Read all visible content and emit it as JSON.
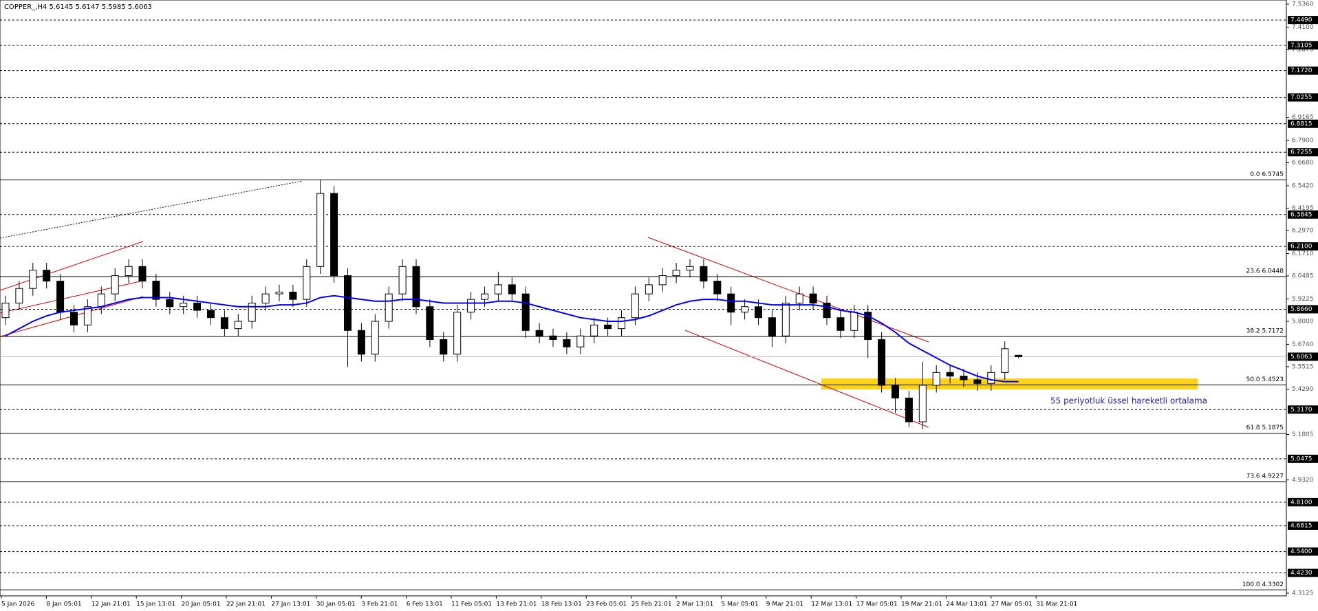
{
  "chart_data": {
    "type": "candlestick",
    "title": "COPPER_,H4  5.6145 5.6147 5.5985 5.6063",
    "annotation": "55 periyotluk üssel hareketli ortalama",
    "x_labels": [
      "5 Jan 2026",
      "8 Jan 05:01",
      "12 Jan 21:01",
      "15 Jan 13:01",
      "20 Jan 05:01",
      "22 Jan 21:01",
      "27 Jan 13:01",
      "30 Jan 05:01",
      "3 Feb 21:01",
      "6 Feb 13:01",
      "11 Feb 05:01",
      "13 Feb 21:01",
      "18 Feb 13:01",
      "23 Feb 05:01",
      "25 Feb 21:01",
      "2 Mar 13:01",
      "5 Mar 05:01",
      "9 Mar 21:01",
      "12 Mar 13:01",
      "17 Mar 05:01",
      "19 Mar 21:01",
      "24 Mar 13:01",
      "27 Mar 05:01",
      "31 Mar 21:01"
    ],
    "open": [
      5.82,
      5.9,
      5.98,
      6.08,
      6.02,
      5.85,
      5.78,
      5.88,
      5.95,
      6.05,
      6.1,
      6.02,
      5.92,
      5.88,
      5.9,
      5.86,
      5.82,
      5.76,
      5.8,
      5.9,
      5.95,
      5.96,
      5.92,
      6.1,
      6.5,
      6.05,
      5.75,
      5.62,
      5.8,
      5.95,
      6.1,
      5.88,
      5.7,
      5.62,
      5.85,
      5.92,
      5.95,
      6.0,
      5.95,
      5.75,
      5.72,
      5.7,
      5.66,
      5.72,
      5.78,
      5.76,
      5.82,
      5.95,
      6.0,
      6.05,
      6.08,
      6.1,
      6.02,
      5.95,
      5.85,
      5.88,
      5.82,
      5.72,
      5.9,
      5.95,
      5.9,
      5.82,
      5.75,
      5.85,
      5.7,
      5.45,
      5.38,
      5.25,
      5.45,
      5.52,
      5.5,
      5.48,
      5.46,
      5.52,
      5.6145
    ],
    "high": [
      5.94,
      6.02,
      6.12,
      6.12,
      6.06,
      5.89,
      5.92,
      5.99,
      6.09,
      6.14,
      6.14,
      6.06,
      5.96,
      5.94,
      5.94,
      5.9,
      5.86,
      5.84,
      5.94,
      5.99,
      6.0,
      6.0,
      6.14,
      6.5745,
      6.54,
      6.09,
      5.79,
      5.84,
      5.99,
      6.14,
      6.14,
      5.92,
      5.74,
      5.89,
      5.96,
      5.99,
      6.07,
      6.04,
      5.99,
      5.79,
      5.76,
      5.74,
      5.76,
      5.82,
      5.82,
      5.86,
      5.99,
      6.04,
      6.09,
      6.12,
      6.14,
      6.14,
      6.06,
      5.99,
      5.92,
      5.92,
      5.86,
      5.94,
      5.99,
      5.99,
      5.94,
      5.86,
      5.89,
      5.89,
      5.74,
      5.49,
      5.42,
      5.58,
      5.56,
      5.56,
      5.54,
      5.52,
      5.56,
      5.69,
      5.6147
    ],
    "low": [
      5.78,
      5.86,
      5.94,
      5.98,
      5.81,
      5.74,
      5.74,
      5.84,
      5.91,
      6.01,
      5.98,
      5.88,
      5.84,
      5.84,
      5.82,
      5.78,
      5.72,
      5.72,
      5.76,
      5.86,
      5.91,
      5.88,
      5.88,
      6.06,
      6.01,
      5.55,
      5.58,
      5.58,
      5.76,
      5.91,
      5.84,
      5.66,
      5.58,
      5.58,
      5.81,
      5.88,
      5.91,
      5.91,
      5.71,
      5.68,
      5.66,
      5.62,
      5.62,
      5.68,
      5.72,
      5.72,
      5.78,
      5.91,
      5.96,
      6.01,
      6.04,
      5.98,
      5.91,
      5.78,
      5.81,
      5.78,
      5.66,
      5.68,
      5.86,
      5.86,
      5.78,
      5.71,
      5.71,
      5.6,
      5.41,
      5.3,
      5.22,
      5.21,
      5.41,
      5.46,
      5.44,
      5.42,
      5.42,
      5.48,
      5.5985
    ],
    "close": [
      5.9,
      5.98,
      6.08,
      6.02,
      5.85,
      5.78,
      5.88,
      5.95,
      6.05,
      6.1,
      6.02,
      5.92,
      5.88,
      5.9,
      5.86,
      5.82,
      5.76,
      5.8,
      5.9,
      5.95,
      5.96,
      5.92,
      6.1,
      6.5,
      6.05,
      5.75,
      5.62,
      5.8,
      5.95,
      6.1,
      5.88,
      5.7,
      5.62,
      5.85,
      5.92,
      5.95,
      6.0,
      5.95,
      5.75,
      5.72,
      5.7,
      5.66,
      5.72,
      5.78,
      5.76,
      5.82,
      5.95,
      6.0,
      6.05,
      6.08,
      6.1,
      6.02,
      5.95,
      5.85,
      5.88,
      5.82,
      5.72,
      5.9,
      5.95,
      5.9,
      5.82,
      5.75,
      5.85,
      5.7,
      5.45,
      5.38,
      5.25,
      5.45,
      5.52,
      5.5,
      5.48,
      5.46,
      5.52,
      5.65,
      5.6063
    ],
    "ema": {
      "color": "#0000ff",
      "values": [
        5.72,
        5.76,
        5.8,
        5.83,
        5.85,
        5.86,
        5.87,
        5.88,
        5.9,
        5.92,
        5.93,
        5.93,
        5.93,
        5.92,
        5.91,
        5.9,
        5.89,
        5.88,
        5.88,
        5.88,
        5.89,
        5.89,
        5.9,
        5.93,
        5.94,
        5.93,
        5.92,
        5.91,
        5.91,
        5.92,
        5.92,
        5.91,
        5.9,
        5.9,
        5.9,
        5.9,
        5.91,
        5.91,
        5.9,
        5.88,
        5.86,
        5.84,
        5.82,
        5.81,
        5.8,
        5.8,
        5.81,
        5.83,
        5.86,
        5.89,
        5.91,
        5.92,
        5.92,
        5.91,
        5.91,
        5.9,
        5.89,
        5.89,
        5.89,
        5.89,
        5.88,
        5.86,
        5.85,
        5.83,
        5.79,
        5.74,
        5.68,
        5.64,
        5.6,
        5.56,
        5.53,
        5.5,
        5.48,
        5.47,
        5.47
      ]
    },
    "ylim": [
      4.3125,
      7.536
    ],
    "yticks": [
      {
        "value": 7.536,
        "label": "7.5360"
      },
      {
        "value": 7.41,
        "label": "7.4100"
      },
      {
        "value": 7.2875,
        "label": "7.2875"
      },
      {
        "value": 6.9165,
        "label": "6.9165"
      },
      {
        "value": 6.79,
        "label": "6.7900"
      },
      {
        "value": 6.668,
        "label": "6.6680"
      },
      {
        "value": 6.542,
        "label": "6.5420"
      },
      {
        "value": 6.4195,
        "label": "6.4195"
      },
      {
        "value": 6.297,
        "label": "6.2970"
      },
      {
        "value": 6.171,
        "label": "6.1710"
      },
      {
        "value": 6.0485,
        "label": "6.0485"
      },
      {
        "value": 5.9225,
        "label": "5.9225"
      },
      {
        "value": 5.8,
        "label": "5.8000"
      },
      {
        "value": 5.674,
        "label": "5.6740"
      },
      {
        "value": 5.5515,
        "label": "5.5515"
      },
      {
        "value": 5.429,
        "label": "5.4290"
      },
      {
        "value": 5.1805,
        "label": "5.1805"
      },
      {
        "value": 4.932,
        "label": "4.9320"
      },
      {
        "value": 4.3125,
        "label": "4.3125"
      }
    ],
    "levels": [
      {
        "value": 7.449,
        "label": "7.4490"
      },
      {
        "value": 7.3105,
        "label": "7.3105"
      },
      {
        "value": 7.172,
        "label": "7.1720"
      },
      {
        "value": 7.0255,
        "label": "7.0255"
      },
      {
        "value": 6.8815,
        "label": "6.8815"
      },
      {
        "value": 6.7255,
        "label": "6.7255"
      },
      {
        "value": 6.3845,
        "label": "6.3845"
      },
      {
        "value": 6.21,
        "label": "6.2100"
      },
      {
        "value": 5.866,
        "label": "5.8660"
      },
      {
        "value": 5.317,
        "label": "5.3170"
      },
      {
        "value": 5.0475,
        "label": "5.0475"
      },
      {
        "value": 4.81,
        "label": "4.8100"
      },
      {
        "value": 4.6815,
        "label": "4.6815"
      },
      {
        "value": 4.54,
        "label": "4.5400"
      },
      {
        "value": 4.423,
        "label": "4.4230"
      }
    ],
    "current": {
      "value": 5.6063,
      "label": "5.6063"
    },
    "fib": [
      {
        "value": 6.5745,
        "label": "0.0 6.5745"
      },
      {
        "value": 6.0448,
        "label": "23.6 6.0448"
      },
      {
        "value": 5.7172,
        "label": "38.2 5.7172"
      },
      {
        "value": 5.4523,
        "label": "50.0 5.4523"
      },
      {
        "value": 5.1875,
        "label": "61.8 5.1875"
      },
      {
        "value": 4.9227,
        "label": "73.6 4.9227"
      },
      {
        "value": 4.3302,
        "label": "100.0 4.3302"
      }
    ]
  }
}
